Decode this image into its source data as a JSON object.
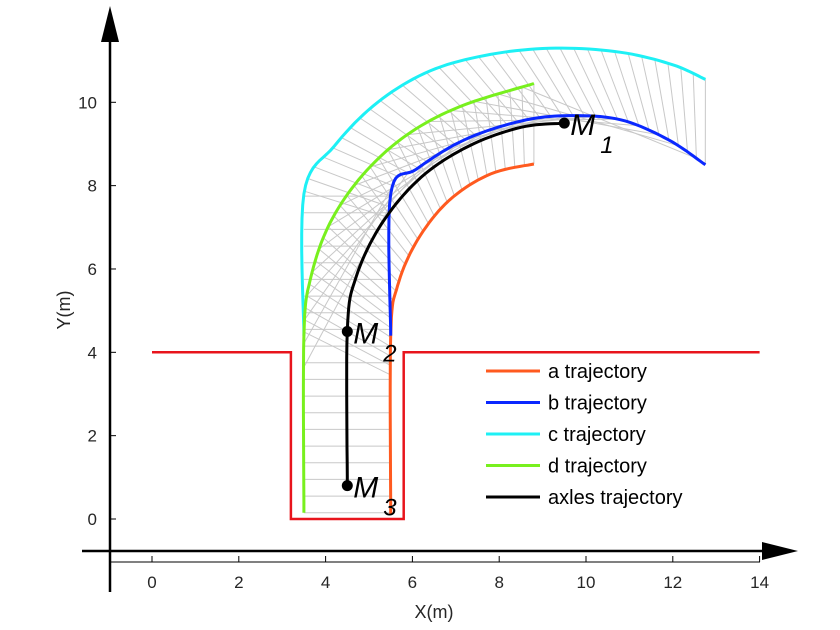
{
  "chart_data": {
    "type": "line",
    "xlabel": "X(m)",
    "ylabel": "Y(m)",
    "xlim": [
      -1,
      15
    ],
    "ylim": [
      -1,
      12
    ],
    "x_ticks": [
      "0",
      "2",
      "4",
      "6",
      "8",
      "10",
      "12",
      "14"
    ],
    "y_ticks": [
      "0",
      "2",
      "4",
      "6",
      "8",
      "10"
    ],
    "grid": false,
    "legend_position": "lower-right",
    "boundary": {
      "color": "#e8141c",
      "points": [
        [
          0,
          4
        ],
        [
          3.2,
          4
        ],
        [
          3.2,
          0
        ],
        [
          5.8,
          0
        ],
        [
          5.8,
          4
        ],
        [
          14,
          4
        ]
      ]
    },
    "series": [
      {
        "name": "a trajectory",
        "color": "#ff5a1f",
        "points": [
          [
            5.5,
            0.1
          ],
          [
            5.5,
            4.4
          ],
          [
            5.66,
            5.6
          ],
          [
            6.12,
            6.7
          ],
          [
            6.85,
            7.65
          ],
          [
            7.8,
            8.28
          ],
          [
            8.8,
            8.52
          ]
        ]
      },
      {
        "name": "b trajectory",
        "color": "#0a28ff",
        "points": [
          [
            5.5,
            4.4
          ],
          [
            5.5,
            7.8
          ],
          [
            6.1,
            8.4
          ],
          [
            7.2,
            9.1
          ],
          [
            8.5,
            9.55
          ],
          [
            9.6,
            9.68
          ],
          [
            10.8,
            9.58
          ],
          [
            11.9,
            9.1
          ],
          [
            12.75,
            8.5
          ]
        ]
      },
      {
        "name": "c trajectory",
        "color": "#1ef0f5",
        "points": [
          [
            3.5,
            4.4
          ],
          [
            3.5,
            7.8
          ],
          [
            4.2,
            8.95
          ],
          [
            5.2,
            10.0
          ],
          [
            6.4,
            10.75
          ],
          [
            7.8,
            11.15
          ],
          [
            9.3,
            11.3
          ],
          [
            10.8,
            11.2
          ],
          [
            12.0,
            10.9
          ],
          [
            12.75,
            10.55
          ]
        ]
      },
      {
        "name": "d trajectory",
        "color": "#78f01e",
        "points": [
          [
            3.5,
            0.15
          ],
          [
            3.5,
            4.4
          ],
          [
            3.66,
            5.8
          ],
          [
            4.1,
            7.1
          ],
          [
            4.85,
            8.25
          ],
          [
            5.85,
            9.2
          ],
          [
            7.1,
            9.9
          ],
          [
            8.8,
            10.45
          ]
        ]
      },
      {
        "name": "axles trajectory",
        "color": "#000000",
        "points": [
          [
            4.5,
            0.8
          ],
          [
            4.5,
            4.5
          ],
          [
            4.7,
            5.8
          ],
          [
            5.3,
            7.1
          ],
          [
            6.2,
            8.2
          ],
          [
            7.3,
            8.95
          ],
          [
            8.5,
            9.4
          ],
          [
            9.5,
            9.5
          ]
        ]
      }
    ],
    "markers": [
      {
        "label": "M",
        "sub": "1",
        "x": 9.5,
        "y": 9.5
      },
      {
        "label": "M",
        "sub": "2",
        "x": 4.5,
        "y": 4.5
      },
      {
        "label": "M",
        "sub": "3",
        "x": 4.5,
        "y": 0.8
      }
    ],
    "envelope_color": "#c8c8c8"
  }
}
